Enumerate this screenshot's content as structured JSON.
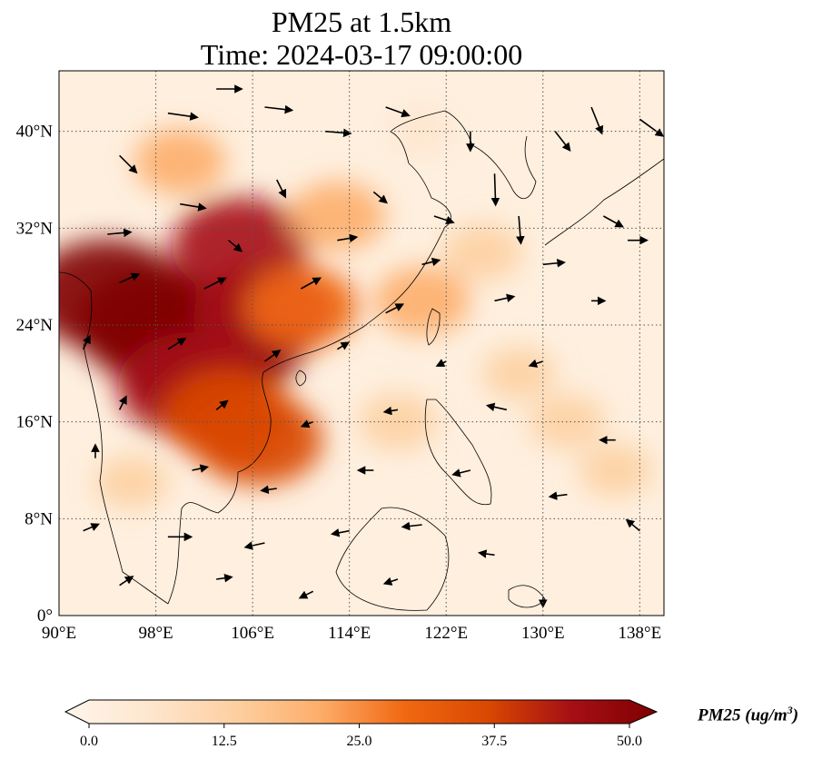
{
  "map": {
    "title_line1": "PM25 at 1.5km",
    "title_line2": "Time: 2024-03-17 09:00:00",
    "extent": {
      "lon_min": 90,
      "lon_max": 140,
      "lat_min": 0,
      "lat_max": 45
    },
    "lon_ticks": [
      {
        "value": 90,
        "label": "90°E"
      },
      {
        "value": 98,
        "label": "98°E"
      },
      {
        "value": 106,
        "label": "106°E"
      },
      {
        "value": 114,
        "label": "114°E"
      },
      {
        "value": 122,
        "label": "122°E"
      },
      {
        "value": 130,
        "label": "130°E"
      },
      {
        "value": 138,
        "label": "138°E"
      }
    ],
    "lat_ticks": [
      {
        "value": 0,
        "label": "0°"
      },
      {
        "value": 8,
        "label": "8°N"
      },
      {
        "value": 16,
        "label": "16°N"
      },
      {
        "value": 24,
        "label": "24°N"
      },
      {
        "value": 32,
        "label": "32°N"
      },
      {
        "value": 40,
        "label": "40°N"
      }
    ],
    "gridlines": true
  },
  "colorbar": {
    "label_main": "PM25 (ug/m",
    "label_sup": "3",
    "label_close": ")",
    "min": 0.0,
    "max": 50.0,
    "ticks": [
      "0.0",
      "12.5",
      "25.0",
      "37.5",
      "50.0"
    ],
    "colors": [
      "#fff5eb",
      "#fee6ce",
      "#fdd0a2",
      "#fdae6b",
      "#f16913",
      "#d94801",
      "#a50f15",
      "#7f0000"
    ]
  },
  "pollution_regions": [
    {
      "lon": 101,
      "lat": 21.5,
      "level": 50
    },
    {
      "lon": 98,
      "lat": 24,
      "level": 50
    },
    {
      "lon": 104,
      "lat": 23,
      "level": 50
    },
    {
      "lon": 94,
      "lat": 26.5,
      "level": 48
    },
    {
      "lon": 101,
      "lat": 19,
      "level": 45
    },
    {
      "lon": 107,
      "lat": 25,
      "level": 42
    },
    {
      "lon": 104,
      "lat": 16.5,
      "level": 38
    },
    {
      "lon": 106.5,
      "lat": 14.5,
      "level": 36
    },
    {
      "lon": 105,
      "lat": 30.5,
      "level": 40
    },
    {
      "lon": 110,
      "lat": 25.5,
      "level": 30
    },
    {
      "lon": 113,
      "lat": 33,
      "level": 22
    },
    {
      "lon": 100,
      "lat": 37.5,
      "level": 20
    },
    {
      "lon": 120,
      "lat": 26,
      "level": 22
    },
    {
      "lon": 118,
      "lat": 16,
      "level": 14
    },
    {
      "lon": 128,
      "lat": 20,
      "level": 12
    },
    {
      "lon": 132,
      "lat": 16,
      "level": 13
    },
    {
      "lon": 125,
      "lat": 30,
      "level": 15
    },
    {
      "lon": 96,
      "lat": 11,
      "level": 12
    },
    {
      "lon": 136,
      "lat": 12,
      "level": 12
    },
    {
      "lon": 120,
      "lat": 40,
      "level": 8
    }
  ],
  "wind_vectors": [
    {
      "lon": 103,
      "lat": 43.5,
      "u": 2.4,
      "v": 0.0
    },
    {
      "lon": 107,
      "lat": 42,
      "u": 2.6,
      "v": -0.3
    },
    {
      "lon": 99,
      "lat": 41.5,
      "u": 2.8,
      "v": -0.4
    },
    {
      "lon": 112,
      "lat": 40,
      "u": 2.4,
      "v": -0.2
    },
    {
      "lon": 117,
      "lat": 42,
      "u": 2.2,
      "v": -0.8
    },
    {
      "lon": 124,
      "lat": 40,
      "u": 0.0,
      "v": -1.8
    },
    {
      "lon": 126,
      "lat": 36.5,
      "u": 0.1,
      "v": -3.0
    },
    {
      "lon": 131,
      "lat": 40,
      "u": 1.4,
      "v": -1.8
    },
    {
      "lon": 134,
      "lat": 42,
      "u": 1.0,
      "v": -2.5
    },
    {
      "lon": 138,
      "lat": 41,
      "u": 2.2,
      "v": -1.6
    },
    {
      "lon": 95,
      "lat": 38,
      "u": 1.6,
      "v": -1.6
    },
    {
      "lon": 100,
      "lat": 34,
      "u": 2.4,
      "v": -0.4
    },
    {
      "lon": 108,
      "lat": 36,
      "u": 0.8,
      "v": -1.6
    },
    {
      "lon": 116,
      "lat": 35,
      "u": 1.2,
      "v": -1.0
    },
    {
      "lon": 121,
      "lat": 33,
      "u": 1.8,
      "v": -0.6
    },
    {
      "lon": 128,
      "lat": 33,
      "u": 0.2,
      "v": -2.6
    },
    {
      "lon": 135,
      "lat": 33,
      "u": 1.8,
      "v": -1.0
    },
    {
      "lon": 94,
      "lat": 31.5,
      "u": 2.2,
      "v": 0.2
    },
    {
      "lon": 104,
      "lat": 31,
      "u": 1.2,
      "v": -1.0
    },
    {
      "lon": 113,
      "lat": 31,
      "u": 1.8,
      "v": 0.3
    },
    {
      "lon": 120,
      "lat": 29,
      "u": 1.6,
      "v": 0.4
    },
    {
      "lon": 130,
      "lat": 29,
      "u": 2.0,
      "v": 0.2
    },
    {
      "lon": 137,
      "lat": 31,
      "u": 1.8,
      "v": 0.0
    },
    {
      "lon": 95,
      "lat": 27.5,
      "u": 1.8,
      "v": 0.8
    },
    {
      "lon": 102,
      "lat": 27,
      "u": 2.0,
      "v": 1.0
    },
    {
      "lon": 110,
      "lat": 27,
      "u": 1.8,
      "v": 1.0
    },
    {
      "lon": 117,
      "lat": 25,
      "u": 1.6,
      "v": 0.8
    },
    {
      "lon": 126,
      "lat": 26,
      "u": 1.8,
      "v": 0.4
    },
    {
      "lon": 134,
      "lat": 26,
      "u": 1.2,
      "v": 0.0
    },
    {
      "lon": 92,
      "lat": 22,
      "u": 0.6,
      "v": 1.2
    },
    {
      "lon": 99,
      "lat": 22,
      "u": 1.6,
      "v": 1.0
    },
    {
      "lon": 107,
      "lat": 21,
      "u": 1.4,
      "v": 1.0
    },
    {
      "lon": 113,
      "lat": 22,
      "u": 1.0,
      "v": 0.6
    },
    {
      "lon": 122,
      "lat": 21,
      "u": -0.8,
      "v": -0.4
    },
    {
      "lon": 130,
      "lat": 21,
      "u": -1.2,
      "v": -0.4
    },
    {
      "lon": 95,
      "lat": 17,
      "u": 0.6,
      "v": 1.2
    },
    {
      "lon": 103,
      "lat": 17,
      "u": 1.0,
      "v": 0.8
    },
    {
      "lon": 111,
      "lat": 16,
      "u": -1.0,
      "v": -0.4
    },
    {
      "lon": 118,
      "lat": 17,
      "u": -1.2,
      "v": -0.2
    },
    {
      "lon": 127,
      "lat": 17,
      "u": -1.8,
      "v": 0.4
    },
    {
      "lon": 136,
      "lat": 14.5,
      "u": -1.4,
      "v": 0.0
    },
    {
      "lon": 93,
      "lat": 13,
      "u": 0.0,
      "v": 1.2
    },
    {
      "lon": 101,
      "lat": 12,
      "u": 1.4,
      "v": 0.3
    },
    {
      "lon": 108,
      "lat": 10.5,
      "u": -1.4,
      "v": -0.2
    },
    {
      "lon": 116,
      "lat": 12,
      "u": -1.4,
      "v": 0.0
    },
    {
      "lon": 124,
      "lat": 12,
      "u": -1.6,
      "v": -0.4
    },
    {
      "lon": 132,
      "lat": 10,
      "u": -1.6,
      "v": -0.2
    },
    {
      "lon": 92,
      "lat": 7,
      "u": 1.4,
      "v": 0.6
    },
    {
      "lon": 99,
      "lat": 6.5,
      "u": 2.2,
      "v": 0.0
    },
    {
      "lon": 107,
      "lat": 6,
      "u": -1.8,
      "v": -0.4
    },
    {
      "lon": 114,
      "lat": 7,
      "u": -1.6,
      "v": -0.3
    },
    {
      "lon": 120,
      "lat": 7.5,
      "u": -1.8,
      "v": -0.2
    },
    {
      "lon": 126,
      "lat": 5,
      "u": -1.4,
      "v": 0.2
    },
    {
      "lon": 138,
      "lat": 7,
      "u": -1.2,
      "v": 1.0
    },
    {
      "lon": 95,
      "lat": 2.5,
      "u": 1.2,
      "v": 0.8
    },
    {
      "lon": 103,
      "lat": 3,
      "u": 1.4,
      "v": 0.2
    },
    {
      "lon": 111,
      "lat": 2,
      "u": -1.2,
      "v": -0.6
    },
    {
      "lon": 118,
      "lat": 3,
      "u": -1.2,
      "v": -0.4
    },
    {
      "lon": 130,
      "lat": 1.5,
      "u": 0.0,
      "v": -0.8
    }
  ]
}
